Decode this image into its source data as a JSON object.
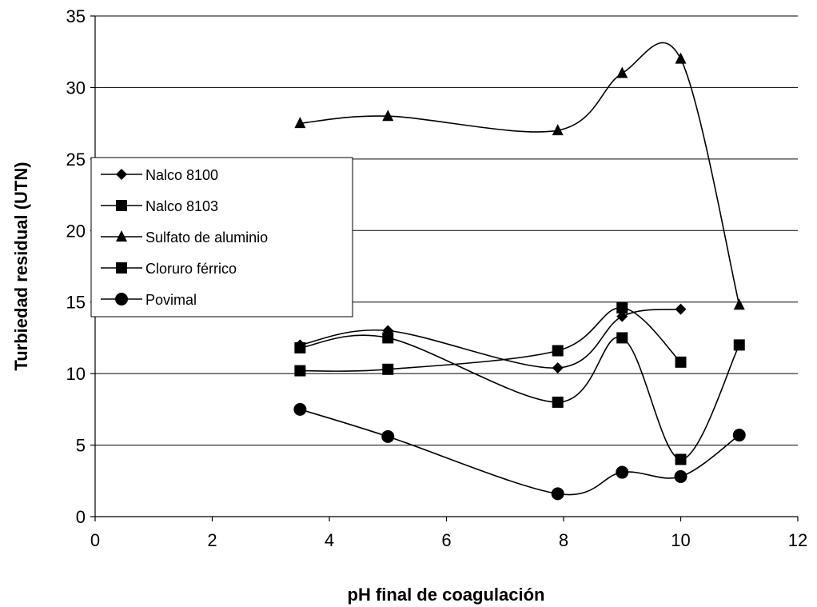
{
  "chart_data": {
    "type": "line",
    "title": "",
    "xlabel": "pH final de coagulación",
    "ylabel": "Turbiedad residual (UTN)",
    "xlim": [
      0,
      12
    ],
    "ylim": [
      0,
      35
    ],
    "x_ticks": [
      0,
      2,
      4,
      6,
      8,
      10,
      12
    ],
    "y_ticks": [
      0,
      5,
      10,
      15,
      20,
      25,
      30,
      35
    ],
    "grid": "horizontal",
    "smooth": true,
    "legend_placement": "left-middle",
    "series": [
      {
        "name": "Nalco 8100",
        "marker": "diamond",
        "points": [
          [
            3.5,
            12.0
          ],
          [
            5.0,
            13.0
          ],
          [
            7.9,
            10.4
          ],
          [
            9.0,
            14.0
          ],
          [
            10.0,
            14.5
          ]
        ]
      },
      {
        "name": "Nalco 8103",
        "marker": "square",
        "points": [
          [
            3.5,
            11.8
          ],
          [
            5.0,
            12.5
          ],
          [
            7.9,
            8.0
          ],
          [
            9.0,
            12.5
          ],
          [
            10.0,
            4.0
          ],
          [
            11.0,
            12.0
          ]
        ]
      },
      {
        "name": "Sulfato de aluminio",
        "marker": "triangle",
        "points": [
          [
            3.5,
            27.5
          ],
          [
            5.0,
            28.0
          ],
          [
            7.9,
            27.0
          ],
          [
            9.0,
            31.0
          ],
          [
            10.0,
            32.0
          ],
          [
            11.0,
            14.8
          ]
        ]
      },
      {
        "name": "Cloruro férrico",
        "marker": "square",
        "points": [
          [
            3.5,
            10.2
          ],
          [
            5.0,
            10.3
          ],
          [
            7.9,
            11.6
          ],
          [
            9.0,
            14.6
          ],
          [
            10.0,
            10.8
          ]
        ]
      },
      {
        "name": "Povimal",
        "marker": "circle",
        "points": [
          [
            3.5,
            7.5
          ],
          [
            5.0,
            5.6
          ],
          [
            7.9,
            1.6
          ],
          [
            9.0,
            3.1
          ],
          [
            10.0,
            2.8
          ],
          [
            11.0,
            5.7
          ]
        ]
      }
    ]
  }
}
